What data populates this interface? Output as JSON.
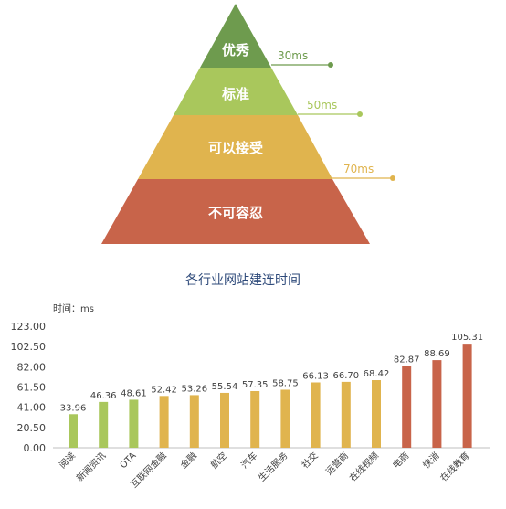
{
  "pyramid": {
    "tiers": [
      {
        "label": "优秀",
        "threshold": "30ms",
        "color": "#6e9b4e"
      },
      {
        "label": "标准",
        "threshold": "50ms",
        "color": "#a9c75c"
      },
      {
        "label": "可以接受",
        "threshold": "70ms",
        "color": "#e0b44e"
      },
      {
        "label": "不可容忍",
        "threshold": "",
        "color": "#c8644a"
      }
    ]
  },
  "chart_data": {
    "type": "bar",
    "title": "各行业网站建连时间",
    "ylabel": "时间：ms",
    "xlabel": "",
    "ylim": [
      0,
      123
    ],
    "yticks": [
      "0.00",
      "20.50",
      "41.00",
      "61.50",
      "82.00",
      "102.50",
      "123.00"
    ],
    "categories": [
      "阅读",
      "新闻资讯",
      "OTA",
      "互联网金融",
      "金融",
      "航空",
      "汽车",
      "生活服务",
      "社交",
      "运营商",
      "在线视频",
      "电商",
      "快消",
      "在线教育"
    ],
    "values": [
      33.96,
      46.36,
      48.61,
      52.42,
      53.26,
      55.54,
      57.35,
      58.75,
      66.13,
      66.7,
      68.42,
      82.87,
      88.69,
      105.31
    ],
    "value_labels": [
      "33.96",
      "46.36",
      "48.61",
      "52.42",
      "53.26",
      "55.54",
      "57.35",
      "58.75",
      "66.13",
      "66.70",
      "68.42",
      "82.87",
      "88.69",
      "105.31"
    ],
    "bar_colors": [
      "#a9c75c",
      "#a9c75c",
      "#a9c75c",
      "#e0b44e",
      "#e0b44e",
      "#e0b44e",
      "#e0b44e",
      "#e0b44e",
      "#e0b44e",
      "#e0b44e",
      "#e0b44e",
      "#c8644a",
      "#c8644a",
      "#c8644a"
    ],
    "grid": false,
    "legend": "none"
  }
}
